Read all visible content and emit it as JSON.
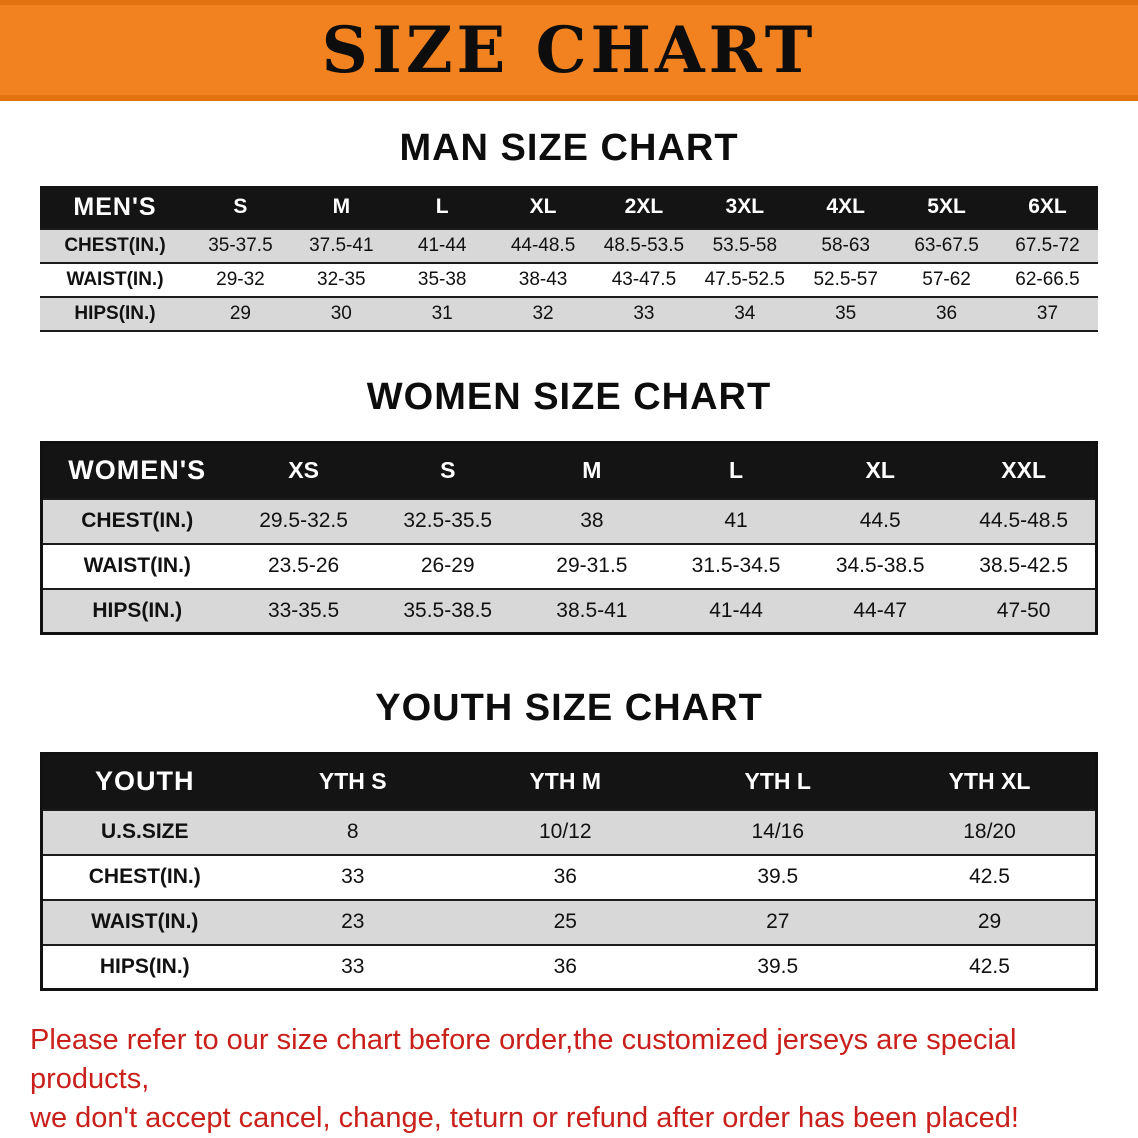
{
  "banner": {
    "title": "SIZE CHART"
  },
  "colors": {
    "banner_orange": "#F28220",
    "header_black": "#141414",
    "row_gray": "#D8D8D8",
    "note_red": "#C9201B"
  },
  "men": {
    "heading": "MAN SIZE CHART",
    "table": {
      "header": [
        "MEN'S",
        "S",
        "M",
        "L",
        "XL",
        "2XL",
        "3XL",
        "4XL",
        "5XL",
        "6XL"
      ],
      "rows": [
        [
          "CHEST(IN.)",
          "35-37.5",
          "37.5-41",
          "41-44",
          "44-48.5",
          "48.5-53.5",
          "53.5-58",
          "58-63",
          "63-67.5",
          "67.5-72"
        ],
        [
          "WAIST(IN.)",
          "29-32",
          "32-35",
          "35-38",
          "38-43",
          "43-47.5",
          "47.5-52.5",
          "52.5-57",
          "57-62",
          "62-66.5"
        ],
        [
          "HIPS(IN.)",
          "29",
          "30",
          "31",
          "32",
          "33",
          "34",
          "35",
          "36",
          "37"
        ]
      ]
    }
  },
  "women": {
    "heading": "WOMEN SIZE CHART",
    "table": {
      "header": [
        "WOMEN'S",
        "XS",
        "S",
        "M",
        "L",
        "XL",
        "XXL"
      ],
      "rows": [
        [
          "CHEST(IN.)",
          "29.5-32.5",
          "32.5-35.5",
          "38",
          "41",
          "44.5",
          "44.5-48.5"
        ],
        [
          "WAIST(IN.)",
          "23.5-26",
          "26-29",
          "29-31.5",
          "31.5-34.5",
          "34.5-38.5",
          "38.5-42.5"
        ],
        [
          "HIPS(IN.)",
          "33-35.5",
          "35.5-38.5",
          "38.5-41",
          "41-44",
          "44-47",
          "47-50"
        ]
      ]
    }
  },
  "youth": {
    "heading": "YOUTH SIZE CHART",
    "table": {
      "header": [
        "YOUTH",
        "YTH S",
        "YTH M",
        "YTH L",
        "YTH XL"
      ],
      "rows": [
        [
          "U.S.SIZE",
          "8",
          "10/12",
          "14/16",
          "18/20"
        ],
        [
          "CHEST(IN.)",
          "33",
          "36",
          "39.5",
          "42.5"
        ],
        [
          "WAIST(IN.)",
          "23",
          "25",
          "27",
          "29"
        ],
        [
          "HIPS(IN.)",
          "33",
          "36",
          "39.5",
          "42.5"
        ]
      ]
    }
  },
  "footer": {
    "line1": "Please refer to our size chart before order,the customized jerseys are special products,",
    "line2": "we don't accept cancel, change, teturn or refund after order has been placed!"
  }
}
